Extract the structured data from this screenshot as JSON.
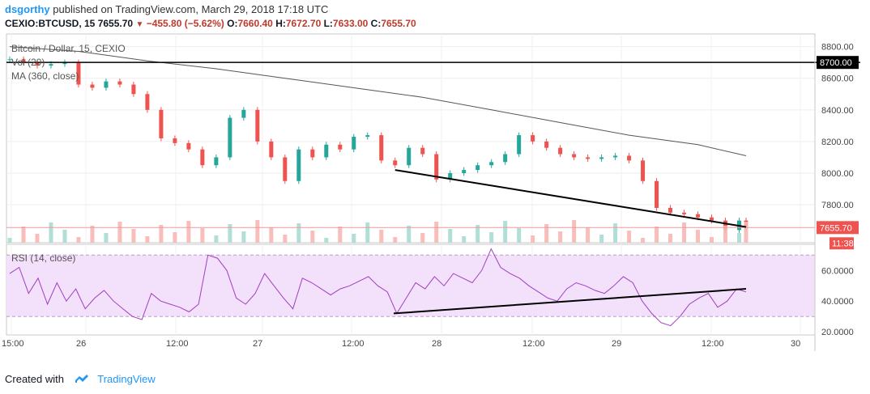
{
  "header": {
    "author": "dsgorthy",
    "published": "published on TradingView.com, March 29, 2018 17:18 UTC",
    "symbol": "CEXIO:BTCUSD, 15",
    "last": "7655.70",
    "change": "−455.80 (−5.62%)",
    "o_label": "O:",
    "o": "7660.40",
    "h_label": "H:",
    "h": "7672.70",
    "l_label": "L:",
    "l": "7633.00",
    "c_label": "C:",
    "c": "7655.70"
  },
  "legend": {
    "title": "Bitcoin / Dollar, 15, CEXIO",
    "vol": "Vol (20)",
    "ma": "MA (360, close)",
    "rsi": "RSI (14, close)"
  },
  "footer": {
    "created": "Created with",
    "brand": "TradingView"
  },
  "colors": {
    "up": "#26a69a",
    "down": "#ef5350",
    "ma": "#555555",
    "rsi": "#a040c0",
    "rsi_band": "#f3e0fb",
    "trend": "#000000"
  },
  "chart_data": [
    {
      "type": "candlestick",
      "title": "Bitcoin / Dollar, 15, CEXIO",
      "x_ticks": [
        "15:00",
        "26",
        "12:00",
        "27",
        "12:00",
        "28",
        "12:00",
        "29",
        "12:00",
        "30"
      ],
      "y_ticks": [
        "8800.00",
        "8600.00",
        "8400.00",
        "8200.00",
        "8000.00",
        "7800.00"
      ],
      "ylim": [
        7560,
        8880
      ],
      "close_path": [
        [
          0,
          8720
        ],
        [
          2,
          8700
        ],
        [
          4,
          8680
        ],
        [
          6,
          8690
        ],
        [
          8,
          8700
        ],
        [
          10,
          8560
        ],
        [
          12,
          8540
        ],
        [
          14,
          8580
        ],
        [
          16,
          8560
        ],
        [
          18,
          8500
        ],
        [
          20,
          8400
        ],
        [
          22,
          8220
        ],
        [
          24,
          8190
        ],
        [
          26,
          8150
        ],
        [
          28,
          8050
        ],
        [
          30,
          8100
        ],
        [
          32,
          8350
        ],
        [
          34,
          8400
        ],
        [
          36,
          8200
        ],
        [
          38,
          8100
        ],
        [
          40,
          7950
        ],
        [
          42,
          8150
        ],
        [
          44,
          8100
        ],
        [
          46,
          8180
        ],
        [
          48,
          8150
        ],
        [
          50,
          8230
        ],
        [
          52,
          8240
        ],
        [
          54,
          8080
        ],
        [
          56,
          8050
        ],
        [
          58,
          8160
        ],
        [
          60,
          8120
        ],
        [
          62,
          7960
        ],
        [
          64,
          8000
        ],
        [
          66,
          8020
        ],
        [
          68,
          8050
        ],
        [
          70,
          8070
        ],
        [
          72,
          8120
        ],
        [
          74,
          8240
        ],
        [
          76,
          8200
        ],
        [
          78,
          8160
        ],
        [
          80,
          8120
        ],
        [
          82,
          8100
        ],
        [
          84,
          8090
        ],
        [
          86,
          8100
        ],
        [
          88,
          8110
        ],
        [
          90,
          8080
        ],
        [
          92,
          7950
        ],
        [
          94,
          7780
        ],
        [
          96,
          7750
        ],
        [
          98,
          7740
        ],
        [
          100,
          7720
        ],
        [
          102,
          7700
        ],
        [
          104,
          7640
        ],
        [
          106,
          7700
        ],
        [
          107,
          7656
        ]
      ],
      "ma_path": [
        [
          0,
          8800
        ],
        [
          10,
          8770
        ],
        [
          20,
          8710
        ],
        [
          30,
          8660
        ],
        [
          40,
          8600
        ],
        [
          50,
          8540
        ],
        [
          60,
          8480
        ],
        [
          70,
          8400
        ],
        [
          80,
          8320
        ],
        [
          90,
          8240
        ],
        [
          100,
          8180
        ],
        [
          107,
          8110
        ]
      ],
      "horizontal_line": {
        "value": 8700,
        "label": "8700.00"
      },
      "last_price": {
        "value": 7655.7,
        "label": "7655.70"
      },
      "countdown": "11:38",
      "trendline": [
        [
          56,
          8020
        ],
        [
          107,
          7660
        ]
      ]
    },
    {
      "type": "line",
      "title": "RSI (14, close)",
      "y_ticks": [
        "60.0000",
        "40.0000",
        "20.0000"
      ],
      "ylim": [
        18,
        77
      ],
      "band": [
        30,
        70
      ],
      "series": [
        {
          "values": [
            58,
            62,
            45,
            55,
            38,
            52,
            40,
            48,
            35,
            42,
            47,
            40,
            35,
            30,
            28,
            45,
            40,
            38,
            36,
            33,
            38,
            70,
            68,
            60,
            42,
            38,
            45,
            58,
            50,
            42,
            35,
            55,
            52,
            48,
            44,
            48,
            50,
            53,
            56,
            50,
            46,
            32,
            42,
            52,
            48,
            56,
            50,
            58,
            55,
            52,
            60,
            74,
            62,
            58,
            55,
            50,
            46,
            42,
            40,
            48,
            52,
            50,
            47,
            45,
            50,
            56,
            52,
            40,
            32,
            26,
            24,
            30,
            38,
            42,
            45,
            36,
            40,
            48,
            46
          ]
        }
      ],
      "trendline": [
        [
          0.0,
          32
        ],
        [
          1.0,
          48
        ]
      ]
    }
  ]
}
